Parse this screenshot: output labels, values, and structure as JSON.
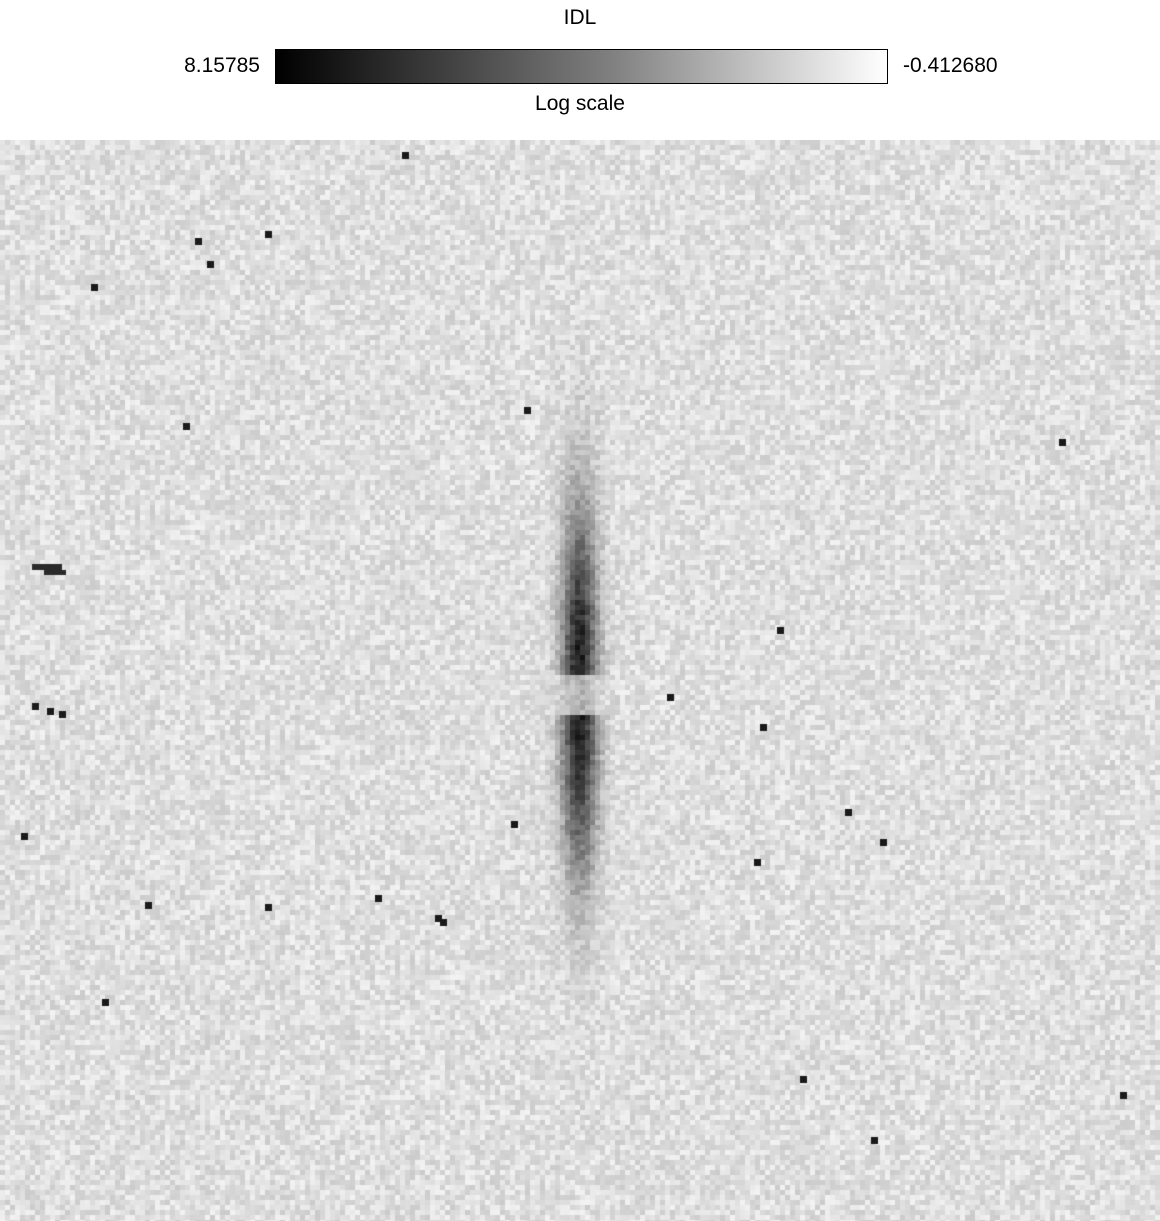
{
  "figure": {
    "title": "IDL",
    "colorbar_min": "8.15785",
    "colorbar_max": "-0.412680",
    "scale_label": "Log scale",
    "colormap": [
      "#000000",
      "#ffffff"
    ]
  }
}
